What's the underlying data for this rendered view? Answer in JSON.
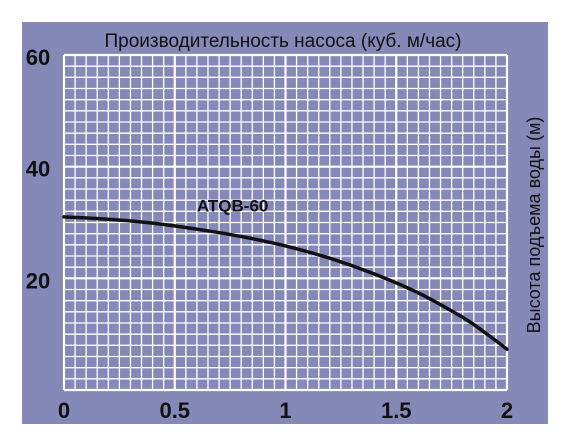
{
  "chart_data": {
    "type": "line",
    "title": "Производительность насоса (куб. м/час)",
    "ylabel": "Высота подъема воды (м)",
    "xlim": [
      0,
      2
    ],
    "ylim": [
      0,
      60
    ],
    "x_ticks": [
      {
        "value": 0,
        "label": "0"
      },
      {
        "value": 0.5,
        "label": "0.5"
      },
      {
        "value": 1,
        "label": "1"
      },
      {
        "value": 1.5,
        "label": "1.5"
      },
      {
        "value": 2,
        "label": "2"
      }
    ],
    "y_ticks": [
      {
        "value": 20,
        "label": "20"
      },
      {
        "value": 40,
        "label": "40"
      },
      {
        "value": 60,
        "label": "60"
      }
    ],
    "grid": true,
    "series": [
      {
        "name": "ATQB-60",
        "color": "#111111",
        "x": [
          0,
          0.2,
          0.4,
          0.6,
          0.8,
          1.0,
          1.2,
          1.4,
          1.6,
          1.8,
          1.9,
          2.0
        ],
        "y": [
          31,
          30.6,
          29.9,
          28.8,
          27.5,
          25.8,
          23.6,
          20.8,
          17.4,
          13.0,
          10.3,
          7.3
        ]
      }
    ]
  },
  "colors": {
    "panel": "#8489b8",
    "grid": "#ffffff",
    "curve": "#111111",
    "text": "#111111"
  }
}
